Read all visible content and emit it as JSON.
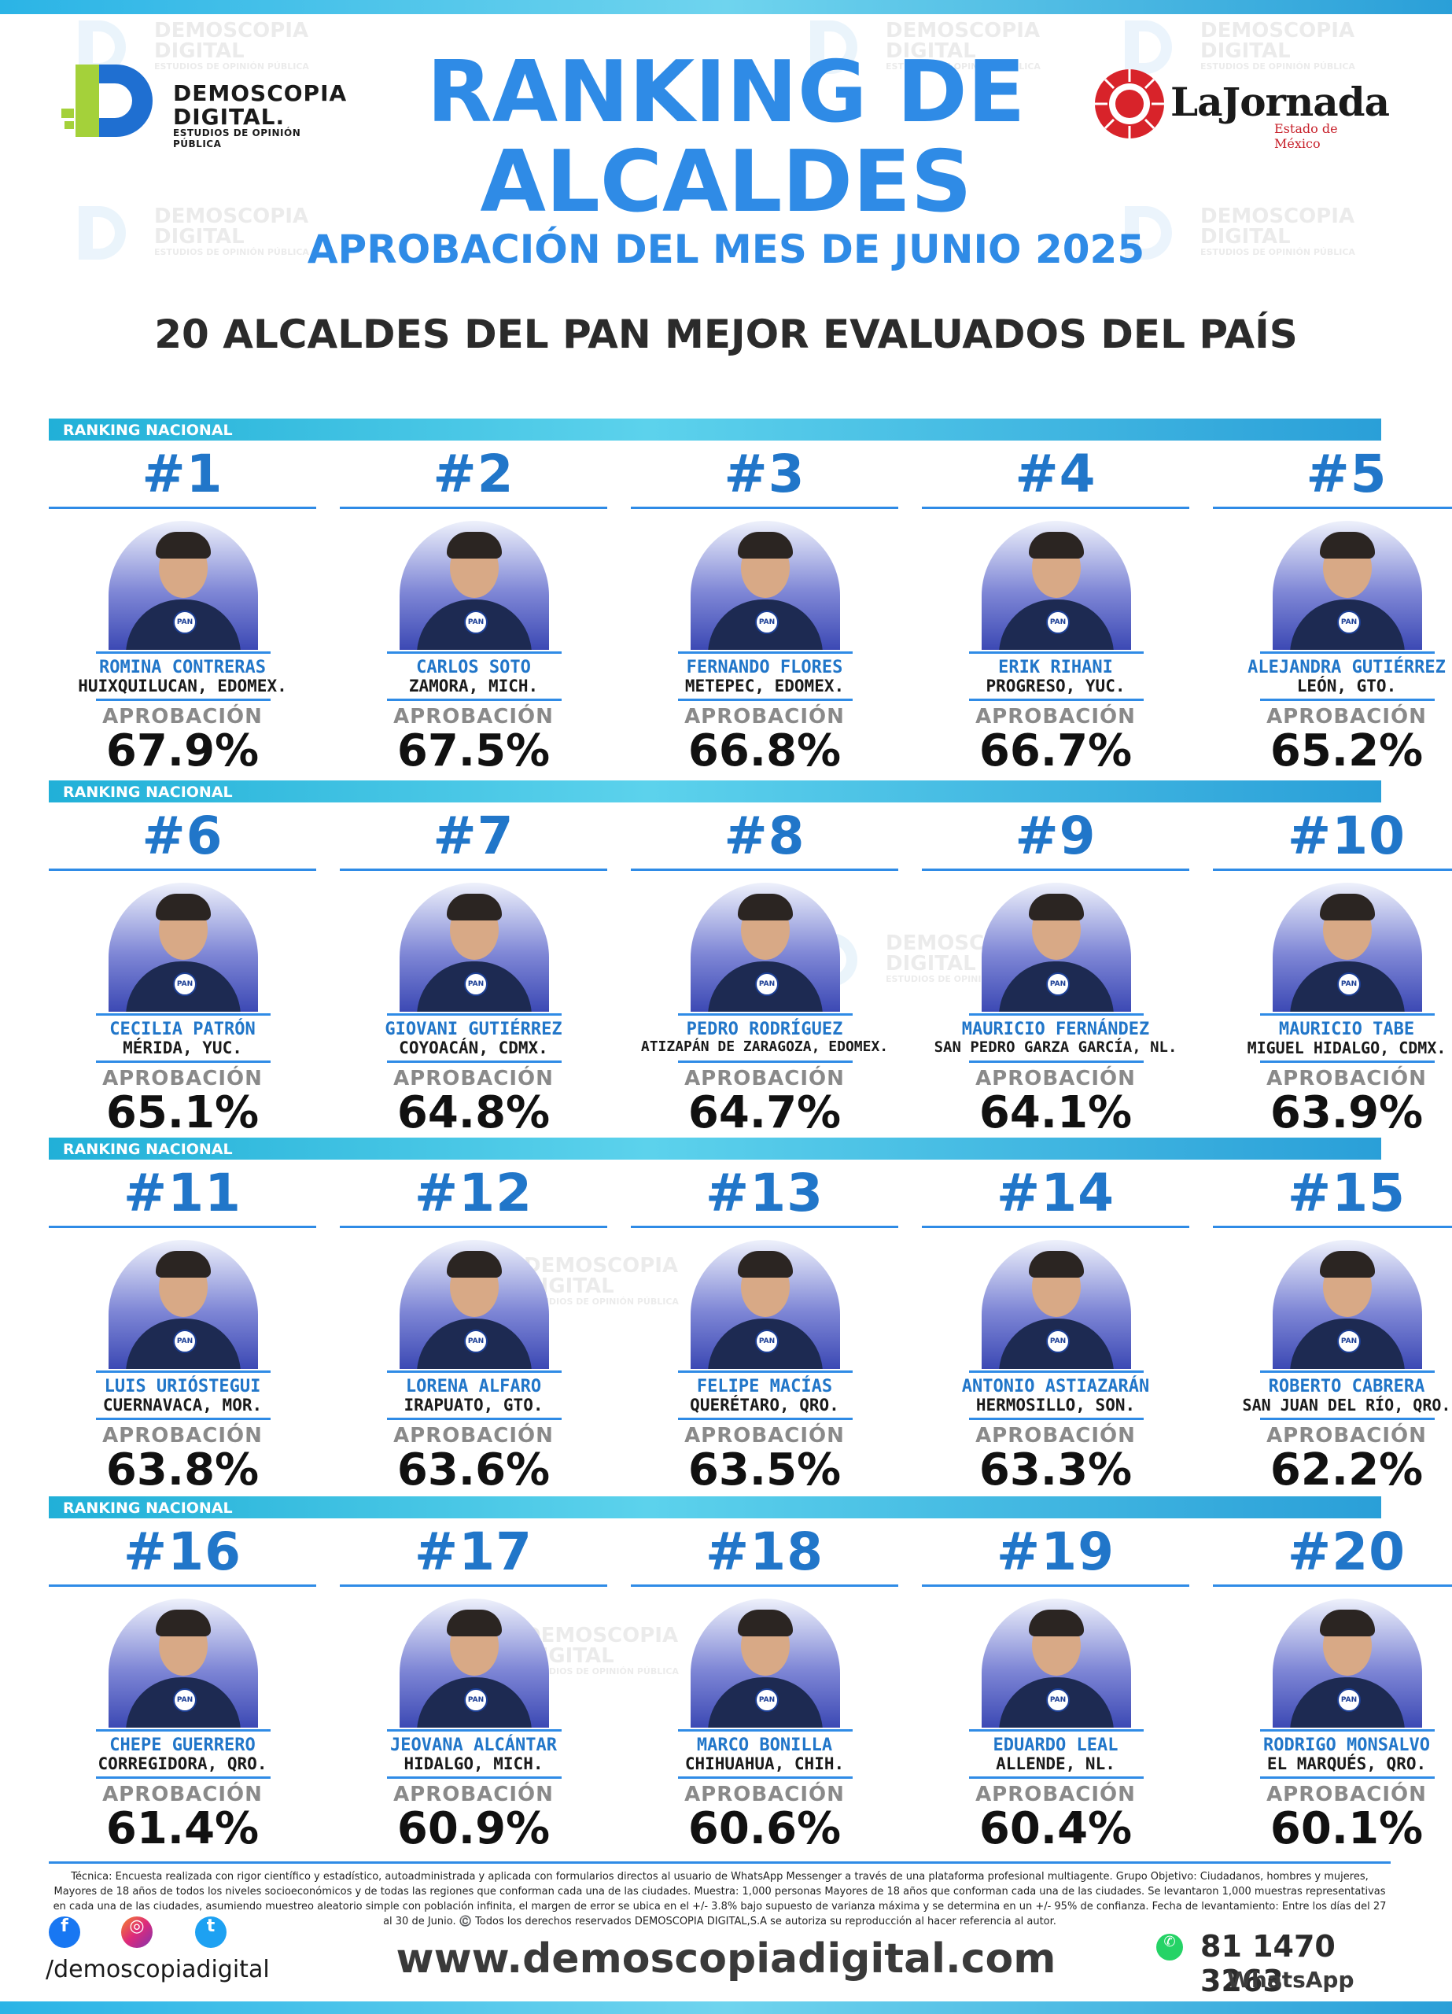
{
  "header": {
    "title_line1": "RANKING DE",
    "title_line2": "ALCALDES",
    "subtitle": "APROBACIÓN DEL MES DE JUNIO 2025",
    "heading": "20 ALCALDES DEL PAN MEJOR EVALUADOS DEL PAÍS"
  },
  "logos": {
    "left": {
      "line1": "DEMOSCOPIA",
      "line2": "DIGITAL.",
      "line3": "ESTUDIOS DE OPINIÓN PÚBLICA"
    },
    "right": {
      "name": "LaJornada",
      "tagline": "Estado de México"
    }
  },
  "watermark": {
    "line1": "DEMOSCOPIA",
    "line2": "DIGITAL",
    "line3": "ESTUDIOS DE OPINIÓN PÚBLICA"
  },
  "band_label": "RANKING NACIONAL",
  "approval_label": "APROBACIÓN",
  "party_badge": "PAN",
  "colors": {
    "accent": "#2f8be6",
    "dark_blue": "#2176c9",
    "band": "#21b0d8"
  },
  "sections": [
    {
      "mayors": [
        {
          "rank": "#1",
          "name": "ROMINA CONTRERAS",
          "place": "HUIXQUILUCAN, EDOMEX.",
          "approval": "67.9%"
        },
        {
          "rank": "#2",
          "name": "CARLOS SOTO",
          "place": "ZAMORA, MICH.",
          "approval": "67.5%"
        },
        {
          "rank": "#3",
          "name": "FERNANDO FLORES",
          "place": "METEPEC, EDOMEX.",
          "approval": "66.8%"
        },
        {
          "rank": "#4",
          "name": "ERIK RIHANI",
          "place": "PROGRESO, YUC.",
          "approval": "66.7%"
        },
        {
          "rank": "#5",
          "name": "ALEJANDRA GUTIÉRREZ",
          "place": "LEÓN, GTO.",
          "approval": "65.2%"
        }
      ]
    },
    {
      "mayors": [
        {
          "rank": "#6",
          "name": "CECILIA PATRÓN",
          "place": "MÉRIDA, YUC.",
          "approval": "65.1%"
        },
        {
          "rank": "#7",
          "name": "GIOVANI GUTIÉRREZ",
          "place": "COYOACÁN, CDMX.",
          "approval": "64.8%"
        },
        {
          "rank": "#8",
          "name": "PEDRO RODRÍGUEZ",
          "place": "ATIZAPÁN DE ZARAGOZA, EDOMEX.",
          "approval": "64.7%"
        },
        {
          "rank": "#9",
          "name": "MAURICIO FERNÁNDEZ",
          "place": "SAN PEDRO GARZA GARCÍA, NL.",
          "approval": "64.1%"
        },
        {
          "rank": "#10",
          "name": "MAURICIO TABE",
          "place": "MIGUEL HIDALGO, CDMX.",
          "approval": "63.9%"
        }
      ]
    },
    {
      "mayors": [
        {
          "rank": "#11",
          "name": "LUIS URIÓSTEGUI",
          "place": "CUERNAVACA, MOR.",
          "approval": "63.8%"
        },
        {
          "rank": "#12",
          "name": "LORENA ALFARO",
          "place": "IRAPUATO, GTO.",
          "approval": "63.6%"
        },
        {
          "rank": "#13",
          "name": "FELIPE MACÍAS",
          "place": "QUERÉTARO, QRO.",
          "approval": "63.5%"
        },
        {
          "rank": "#14",
          "name": "ANTONIO ASTIAZARÁN",
          "place": "HERMOSILLO, SON.",
          "approval": "63.3%"
        },
        {
          "rank": "#15",
          "name": "ROBERTO CABRERA",
          "place": "SAN JUAN DEL RÍO, QRO.",
          "approval": "62.2%"
        }
      ]
    },
    {
      "mayors": [
        {
          "rank": "#16",
          "name": "CHEPE GUERRERO",
          "place": "CORREGIDORA, QRO.",
          "approval": "61.4%"
        },
        {
          "rank": "#17",
          "name": "JEOVANA ALCÁNTAR",
          "place": "HIDALGO, MICH.",
          "approval": "60.9%"
        },
        {
          "rank": "#18",
          "name": "MARCO BONILLA",
          "place": "CHIHUAHUA, CHIH.",
          "approval": "60.6%"
        },
        {
          "rank": "#19",
          "name": "EDUARDO LEAL",
          "place": "ALLENDE, NL.",
          "approval": "60.4%"
        },
        {
          "rank": "#20",
          "name": "RODRIGO MONSALVO",
          "place": "EL MARQUÉS, QRO.",
          "approval": "60.1%"
        }
      ]
    }
  ],
  "footer": {
    "technical": "Técnica: Encuesta realizada con rigor científico y estadístico, autoadministrada y aplicada con formularios directos al usuario de WhatsApp Messenger a través de una plataforma profesional multiagente. Grupo Objetivo: Ciudadanos, hombres y mujeres, Mayores de 18 años de todos los niveles socioeconómicos y de todas las regiones que conforman cada una de las ciudades. Muestra: 1,000 personas Mayores de 18 años que conforman cada una de las ciudades. Se levantaron 1,000 muestras representativas en cada una de las ciudades, asumiendo muestreo aleatorio simple con población infinita, el margen de error se ubica en el +/- 3.8% bajo supuesto de varianza máxima y se determina en un +/- 95% de confianza. Fecha de levantamiento: Entre los días del 27 al 30 de Junio. ©️ Todos los derechos reservados DEMOSCOPIA DIGITAL,S.A se autoriza su reproducción al hacer referencia al autor.",
    "handle": "/demoscopiadigital",
    "website": "www.demoscopiadigital.com",
    "phone": "81 1470 3263",
    "whatsapp_label": "WhatsApp",
    "icons": [
      "facebook-icon",
      "instagram-icon",
      "twitter-icon",
      "whatsapp-icon"
    ]
  }
}
